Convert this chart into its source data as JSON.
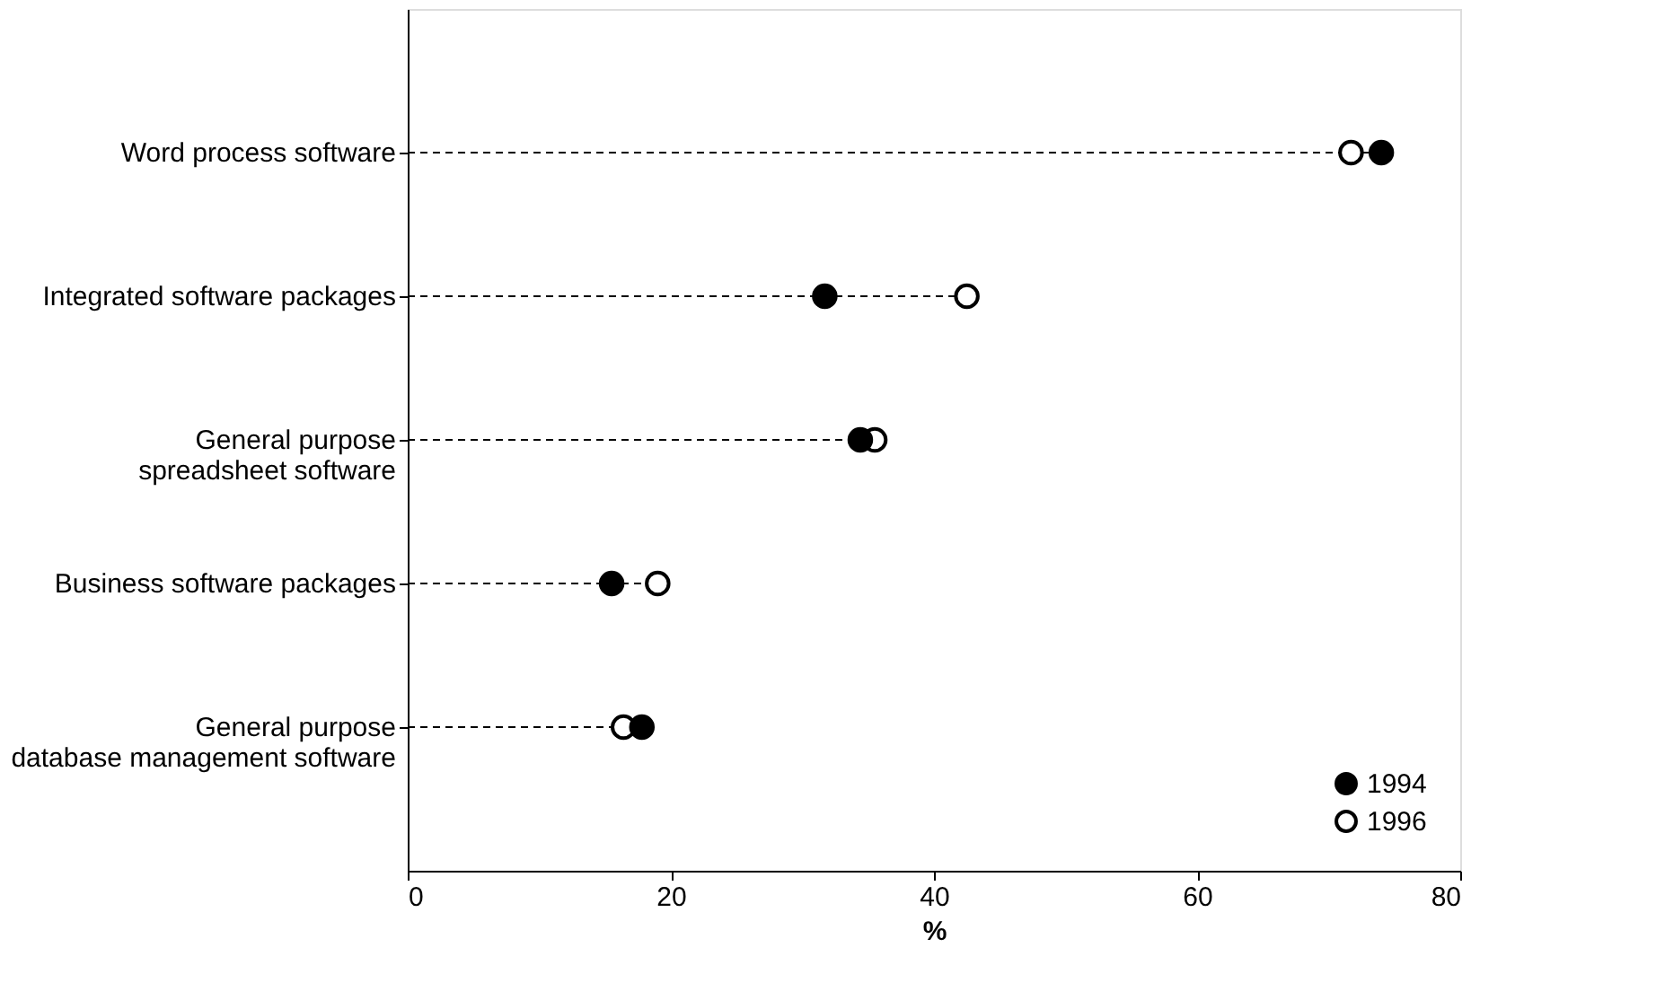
{
  "chart_data": {
    "type": "lollipop",
    "orientation": "horizontal",
    "categories": [
      "Word process software",
      "Integrated software packages",
      "General purpose\nspreadsheet software",
      "Business software packages",
      "General purpose\ndatabase management software"
    ],
    "series": [
      {
        "name": "1994",
        "color": "#000000",
        "values": [
          74.0,
          31.7,
          34.4,
          15.5,
          17.8
        ]
      },
      {
        "name": "1996",
        "color": "#000000",
        "values": [
          71.7,
          42.5,
          35.5,
          19.0,
          16.4
        ]
      }
    ],
    "xlabel": "%",
    "xlim": [
      0,
      80
    ],
    "xticks": [
      0,
      20,
      40,
      60,
      80
    ],
    "marker": "circle",
    "line_style": "dashed",
    "legend": "bottom right"
  }
}
